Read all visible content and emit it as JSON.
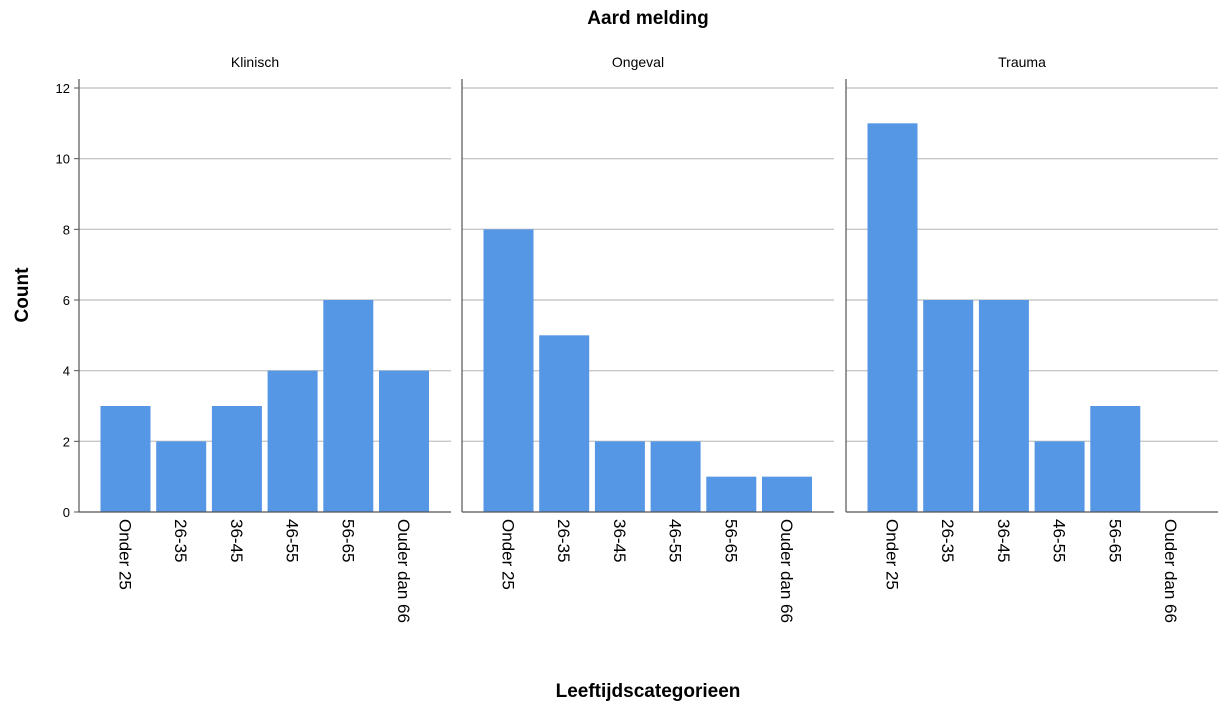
{
  "chart_data": {
    "type": "bar",
    "title": "Aard melding",
    "ylabel": "Count",
    "xlabel": "Leeftijdscategorieen",
    "ylim": [
      0,
      12
    ],
    "yticks": [
      0,
      2,
      4,
      6,
      8,
      10,
      12
    ],
    "grid": true,
    "categories": [
      "Onder 25",
      "26-35",
      "36-45",
      "46-55",
      "56-65",
      "Ouder dan 66"
    ],
    "bar_color": "#5596e5",
    "panels": [
      {
        "name": "Klinisch",
        "values": [
          3,
          2,
          3,
          4,
          6,
          4
        ]
      },
      {
        "name": "Ongeval",
        "values": [
          8,
          5,
          2,
          2,
          1,
          1
        ]
      },
      {
        "name": "Trauma",
        "values": [
          11,
          6,
          6,
          2,
          3,
          0
        ]
      }
    ]
  }
}
